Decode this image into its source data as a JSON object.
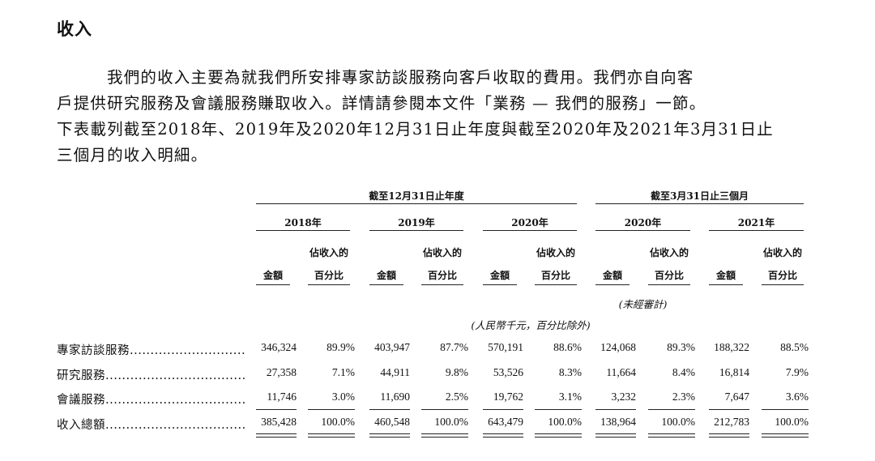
{
  "heading": "收入",
  "paragraph": [
    "我們的收入主要為就我們所安排專家訪談服務向客戶收取的費用。我們亦自向客",
    "戶提供研究服務及會議服務賺取收入。詳情請參閱本文件「業務 — 我們的服務」一節。",
    "下表載列截至2018年、2019年及2020年12月31日止年度與截至2020年及2021年3月31日止",
    "三個月的收入明細。"
  ],
  "table": {
    "group_headers": [
      "截至12月31日止年度",
      "截至3月31日止三個月"
    ],
    "years": [
      "2018年",
      "2019年",
      "2020年",
      "2020年",
      "2021年"
    ],
    "col_amount": "金額",
    "col_pct_line1": "佔收入的",
    "col_pct_line2": "百分比",
    "unaudited": "(未經審計)",
    "unit_note": "(人民幣千元，百分比除外)",
    "rows": [
      {
        "label": "專家訪談服務",
        "values": [
          "346,324",
          "89.9%",
          "403,947",
          "87.7%",
          "570,191",
          "88.6%",
          "124,068",
          "89.3%",
          "188,322",
          "88.5%"
        ]
      },
      {
        "label": "研究服務",
        "values": [
          "27,358",
          "7.1%",
          "44,911",
          "9.8%",
          "53,526",
          "8.3%",
          "11,664",
          "8.4%",
          "16,814",
          "7.9%"
        ]
      },
      {
        "label": "會議服務",
        "values": [
          "11,746",
          "3.0%",
          "11,690",
          "2.5%",
          "19,762",
          "3.1%",
          "3,232",
          "2.3%",
          "7,647",
          "3.6%"
        ]
      },
      {
        "label": "收入總額",
        "values": [
          "385,428",
          "100.0%",
          "460,548",
          "100.0%",
          "643,479",
          "100.0%",
          "138,964",
          "100.0%",
          "212,783",
          "100.0%"
        ]
      }
    ]
  }
}
